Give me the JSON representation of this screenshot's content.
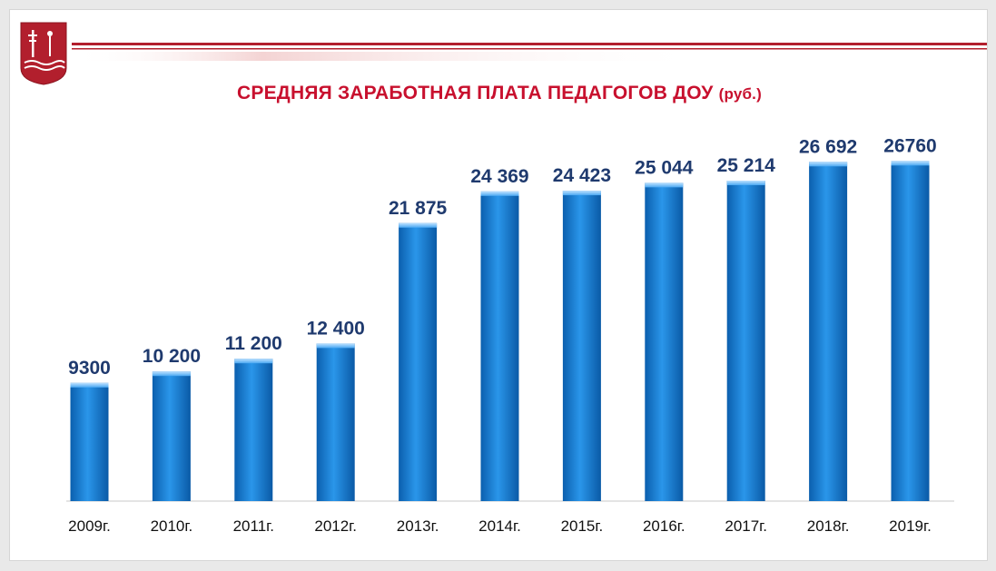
{
  "title": "СРЕДНЯЯ ЗАРАБОТНАЯ ПЛАТА ПЕДАГОГОВ ДОУ",
  "title_unit": "(руб.)",
  "colors": {
    "brand_red": "#b21f2d",
    "title_red": "#c8102e",
    "bar_blue": "#1a7fd4",
    "label_navy": "#1f3a6e"
  },
  "chart_data": {
    "type": "bar",
    "title": "СРЕДНЯЯ ЗАРАБОТНАЯ ПЛАТА ПЕДАГОГОВ ДОУ (руб.)",
    "categories": [
      "2009г.",
      "2010г.",
      "2011г.",
      "2012г.",
      "2013г.",
      "2014г.",
      "2015г.",
      "2016г.",
      "2017г.",
      "2018г.",
      "2019г."
    ],
    "values": [
      9300,
      10200,
      11200,
      12400,
      21875,
      24369,
      24423,
      25044,
      25214,
      26692,
      26760
    ],
    "data_labels": [
      "9300",
      "10 200",
      "11 200",
      "12 400",
      "21 875",
      "24 369",
      "24 423",
      "25 044",
      "25 214",
      "26 692",
      "26760"
    ],
    "xlabel": "",
    "ylabel": "",
    "ylim": [
      0,
      27500
    ],
    "grid": false,
    "legend": "none"
  }
}
